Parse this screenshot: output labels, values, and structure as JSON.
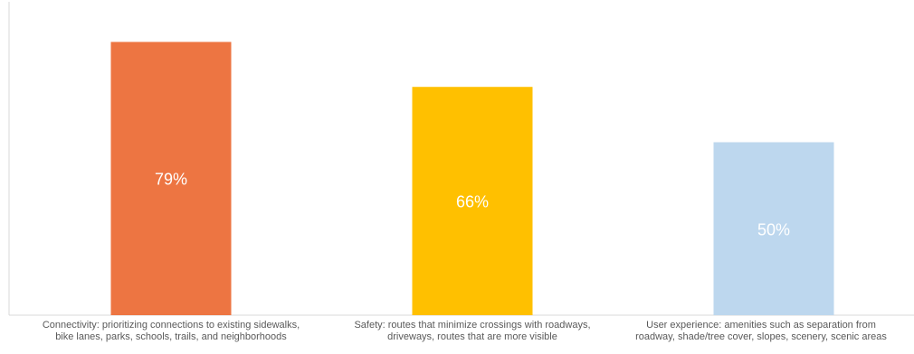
{
  "chart_data": {
    "type": "bar",
    "title": "",
    "xlabel": "",
    "ylabel": "",
    "ylim": [
      0,
      100
    ],
    "grid": false,
    "legend": "none",
    "categories": [
      [
        "Connectivity: prioritizing connections to existing sidewalks,",
        "bike lanes, parks, schools, trails, and neighborhoods"
      ],
      [
        "Safety: routes that minimize crossings with roadways,",
        "driveways, routes that are more visible"
      ],
      [
        "User experience: amenities such as separation from",
        "roadway, shade/tree cover, slopes, scenery, scenic areas"
      ]
    ],
    "values": [
      79,
      66,
      50
    ],
    "data_labels": [
      "79%",
      "66%",
      "50%"
    ],
    "colors": [
      "#ED7542",
      "#FFC000",
      "#BDD7EE"
    ],
    "label_color": "#ffffff",
    "axis_color": "#d9d9d9"
  }
}
